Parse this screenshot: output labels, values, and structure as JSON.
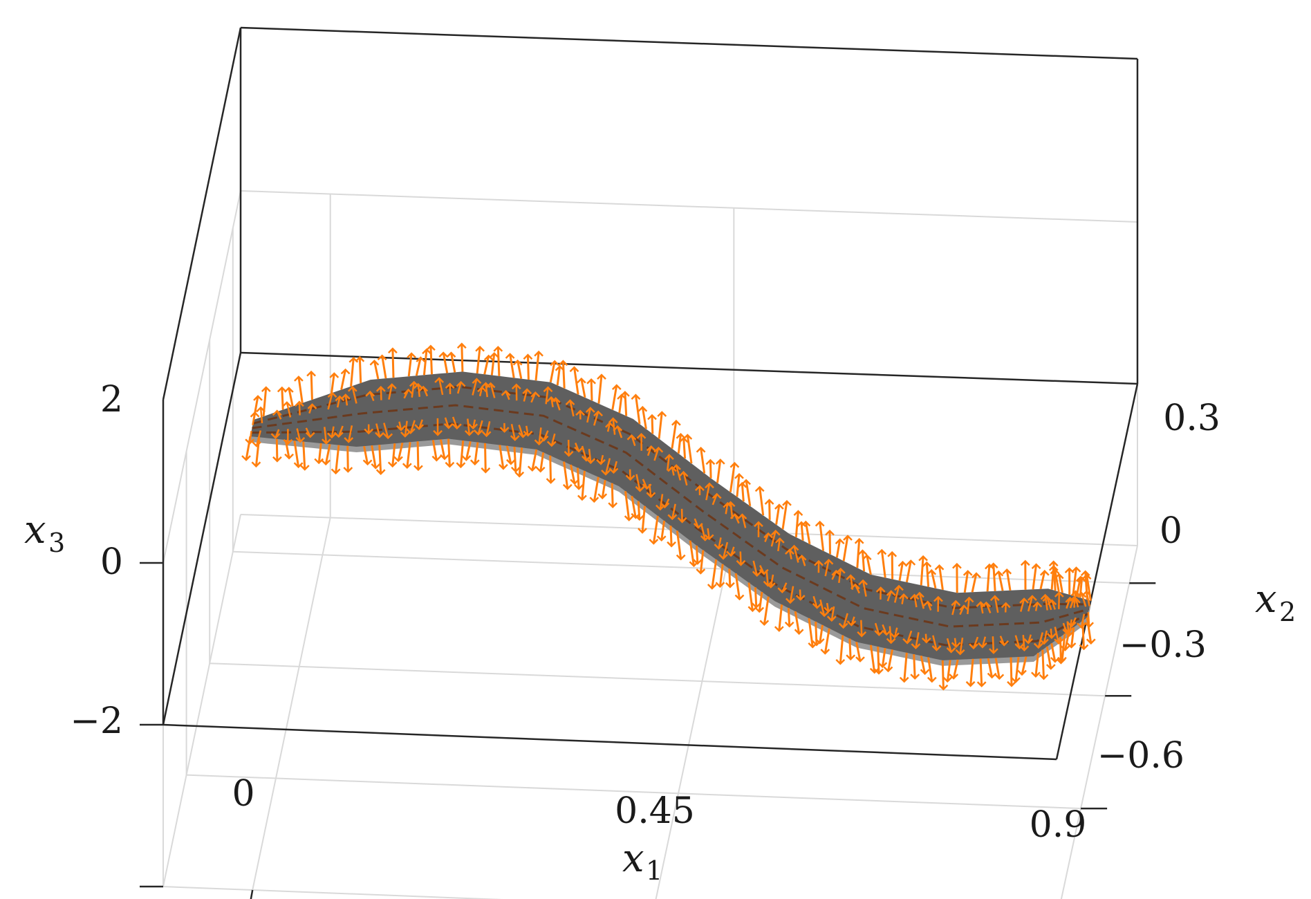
{
  "chart_data": {
    "type": "surface-3d",
    "title": "",
    "axes": {
      "x1": {
        "label": "x",
        "label_sub": "1",
        "ticks": [
          "0",
          "0.45",
          "0.9"
        ],
        "tick_values": [
          0,
          0.45,
          0.9
        ],
        "range": [
          -0.1,
          0.9
        ]
      },
      "x2": {
        "label": "x",
        "label_sub": "2",
        "ticks": [
          "0.3",
          "0",
          "−0.3",
          "−0.6"
        ],
        "tick_values": [
          0.3,
          0,
          -0.3,
          -0.6
        ],
        "range": [
          -0.6,
          0.4
        ]
      },
      "x3": {
        "label": "x",
        "label_sub": "3",
        "ticks": [
          "2",
          "0",
          "−2"
        ],
        "tick_values": [
          2,
          0,
          -2
        ],
        "range": [
          -2,
          2
        ]
      }
    },
    "surface": {
      "description_free_shape": "sinusoidal ribbon",
      "centerline": {
        "x1": [
          -0.07,
          0.05,
          0.15,
          0.25,
          0.35,
          0.45,
          0.55,
          0.65,
          0.75,
          0.85,
          0.9
        ],
        "x2": [
          0.2,
          0.25,
          0.28,
          0.26,
          0.17,
          0.02,
          -0.12,
          -0.22,
          -0.26,
          -0.24,
          -0.2
        ]
      },
      "half_width_x2": 0.09,
      "x3": 0,
      "fill_color": "#5f5f5f",
      "edge_color": "#9a9a9a"
    },
    "vector_field": {
      "color": "#ff7f0e",
      "count_per_row": 95,
      "rows": 4
    },
    "inner_lines_color": "#6b3a1e",
    "grid": true,
    "grid_color": "#d9d9d9",
    "box_color": "#262626"
  }
}
